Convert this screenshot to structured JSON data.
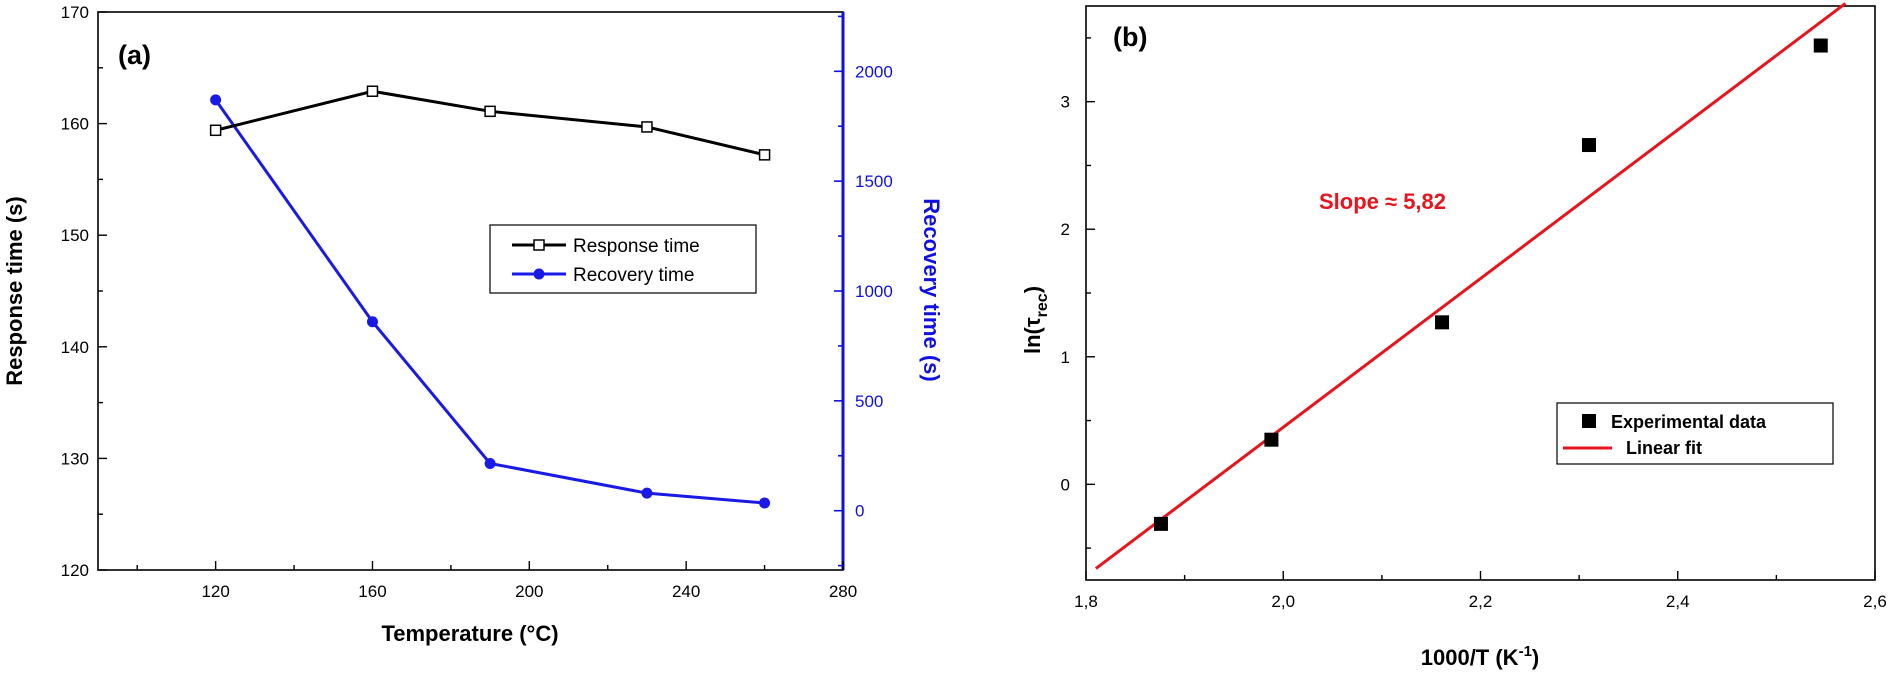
{
  "colors": {
    "black": "#000000",
    "blue": "#1a1ae6",
    "blue_axis": "#1010e0",
    "red": "#e8141c"
  },
  "chart_data": [
    {
      "type": "line",
      "panel_label": "(a)",
      "xlabel": "Temperature (°C)",
      "ylabel": "Response time (s)",
      "y2label": "Recovery time (s)",
      "xlim": [
        90,
        280
      ],
      "ylim": [
        120,
        170
      ],
      "y2lim": [
        -270,
        2270
      ],
      "x_ticks": [
        "120",
        "160",
        "200",
        "240",
        "280"
      ],
      "y_ticks": [
        "120",
        "130",
        "140",
        "150",
        "160",
        "170"
      ],
      "y2_ticks": [
        "0",
        "500",
        "1000",
        "1500",
        "2000"
      ],
      "grid": false,
      "legend_position": "center-right",
      "series": [
        {
          "name": "Response time",
          "axis": "left",
          "color": "#000000",
          "marker": "open-square",
          "x": [
            120,
            160,
            190,
            230,
            260
          ],
          "y": [
            159.4,
            162.9,
            161.1,
            159.7,
            157.2
          ]
        },
        {
          "name": "Recovery time",
          "axis": "right",
          "color": "#1a1ae6",
          "marker": "filled-circle",
          "x": [
            120,
            160,
            190,
            230,
            260
          ],
          "y": [
            1870,
            860,
            215,
            80,
            35
          ]
        }
      ]
    },
    {
      "type": "scatter",
      "panel_label": "(b)",
      "xlabel": "1000/T (K⁻¹)",
      "ylabel": "ln(τrec)",
      "xlim": [
        1.8,
        2.6
      ],
      "ylim": [
        -0.75,
        3.75
      ],
      "x_ticks": [
        "1,8",
        "2,0",
        "2,2",
        "2,4",
        "2,6"
      ],
      "y_ticks": [
        "0",
        "1",
        "2",
        "3"
      ],
      "grid": false,
      "legend_position": "lower-right",
      "annotation": "Slope ≈  5,82",
      "series": [
        {
          "name": "Experimental data",
          "color": "#000000",
          "marker": "filled-square",
          "x": [
            1.876,
            1.988,
            2.161,
            2.31,
            2.545
          ],
          "y": [
            -0.31,
            0.35,
            1.27,
            2.66,
            3.44
          ]
        },
        {
          "name": "Linear fit",
          "color": "#e8141c",
          "marker": "line",
          "x": [
            1.81,
            2.57
          ],
          "y": [
            -0.66,
            3.77
          ]
        }
      ]
    }
  ]
}
